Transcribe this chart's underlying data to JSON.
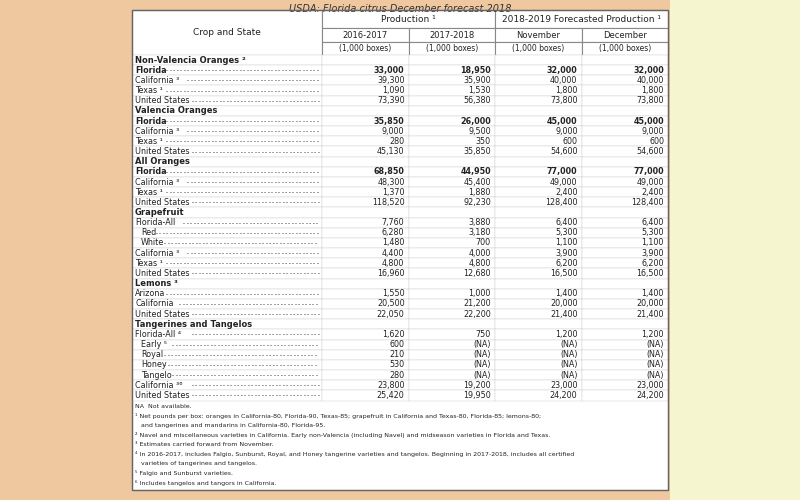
{
  "title": "USDA: Florida citrus December forecast 2018",
  "bg_left_color": "#f0c8a0",
  "bg_right_color": "#f0f0c8",
  "table_bg": "#ffffff",
  "col_subheaders": [
    "2016-2017",
    "2017-2018",
    "November",
    "December"
  ],
  "col_units": [
    "(1,000 boxes)",
    "(1,000 boxes)",
    "(1,000 boxes)",
    "(1,000 boxes)"
  ],
  "rows": [
    {
      "label": "Non-Valencia Oranges ²",
      "bold": true,
      "indent": 0,
      "values": [
        "",
        "",
        "",
        ""
      ],
      "section_header": true,
      "bold_values": false
    },
    {
      "label": "Florida",
      "bold": true,
      "indent": 1,
      "values": [
        "33,000",
        "18,950",
        "32,000",
        "32,000"
      ],
      "bold_values": true,
      "section_header": false
    },
    {
      "label": "California ³",
      "bold": false,
      "indent": 1,
      "values": [
        "39,300",
        "35,900",
        "40,000",
        "40,000"
      ],
      "bold_values": false,
      "section_header": false
    },
    {
      "label": "Texas ¹",
      "bold": false,
      "indent": 1,
      "values": [
        "1,090",
        "1,530",
        "1,800",
        "1,800"
      ],
      "bold_values": false,
      "section_header": false
    },
    {
      "label": "United States",
      "bold": false,
      "indent": 1,
      "values": [
        "73,390",
        "56,380",
        "73,800",
        "73,800"
      ],
      "bold_values": false,
      "section_header": false
    },
    {
      "label": "Valencia Oranges",
      "bold": true,
      "indent": 0,
      "values": [
        "",
        "",
        "",
        ""
      ],
      "section_header": true,
      "bold_values": false
    },
    {
      "label": "Florida",
      "bold": true,
      "indent": 1,
      "values": [
        "35,850",
        "26,000",
        "45,000",
        "45,000"
      ],
      "bold_values": true,
      "section_header": false
    },
    {
      "label": "California ³",
      "bold": false,
      "indent": 1,
      "values": [
        "9,000",
        "9,500",
        "9,000",
        "9,000"
      ],
      "bold_values": false,
      "section_header": false
    },
    {
      "label": "Texas ¹",
      "bold": false,
      "indent": 1,
      "values": [
        "280",
        "350",
        "600",
        "600"
      ],
      "bold_values": false,
      "section_header": false
    },
    {
      "label": "United States",
      "bold": false,
      "indent": 1,
      "values": [
        "45,130",
        "35,850",
        "54,600",
        "54,600"
      ],
      "bold_values": false,
      "section_header": false
    },
    {
      "label": "All Oranges",
      "bold": true,
      "indent": 0,
      "values": [
        "",
        "",
        "",
        ""
      ],
      "section_header": true,
      "bold_values": false
    },
    {
      "label": "Florida",
      "bold": true,
      "indent": 1,
      "values": [
        "68,850",
        "44,950",
        "77,000",
        "77,000"
      ],
      "bold_values": true,
      "section_header": false
    },
    {
      "label": "California ³",
      "bold": false,
      "indent": 1,
      "values": [
        "48,300",
        "45,400",
        "49,000",
        "49,000"
      ],
      "bold_values": false,
      "section_header": false
    },
    {
      "label": "Texas ¹",
      "bold": false,
      "indent": 1,
      "values": [
        "1,370",
        "1,880",
        "2,400",
        "2,400"
      ],
      "bold_values": false,
      "section_header": false
    },
    {
      "label": "United States",
      "bold": false,
      "indent": 1,
      "values": [
        "118,520",
        "92,230",
        "128,400",
        "128,400"
      ],
      "bold_values": false,
      "section_header": false
    },
    {
      "label": "Grapefruit",
      "bold": true,
      "indent": 0,
      "values": [
        "",
        "",
        "",
        ""
      ],
      "section_header": true,
      "bold_values": false
    },
    {
      "label": "Florida-All",
      "bold": false,
      "indent": 1,
      "values": [
        "7,760",
        "3,880",
        "6,400",
        "6,400"
      ],
      "bold_values": false,
      "section_header": false
    },
    {
      "label": "  Red",
      "bold": false,
      "indent": 2,
      "values": [
        "6,280",
        "3,180",
        "5,300",
        "5,300"
      ],
      "bold_values": false,
      "section_header": false
    },
    {
      "label": "  White",
      "bold": false,
      "indent": 2,
      "values": [
        "1,480",
        "700",
        "1,100",
        "1,100"
      ],
      "bold_values": false,
      "section_header": false
    },
    {
      "label": "California ³",
      "bold": false,
      "indent": 1,
      "values": [
        "4,400",
        "4,000",
        "3,900",
        "3,900"
      ],
      "bold_values": false,
      "section_header": false
    },
    {
      "label": "Texas ¹",
      "bold": false,
      "indent": 1,
      "values": [
        "4,800",
        "4,800",
        "6,200",
        "6,200"
      ],
      "bold_values": false,
      "section_header": false
    },
    {
      "label": "United States",
      "bold": false,
      "indent": 1,
      "values": [
        "16,960",
        "12,680",
        "16,500",
        "16,500"
      ],
      "bold_values": false,
      "section_header": false
    },
    {
      "label": "Lemons ³",
      "bold": true,
      "indent": 0,
      "values": [
        "",
        "",
        "",
        ""
      ],
      "section_header": true,
      "bold_values": false
    },
    {
      "label": "Arizona",
      "bold": false,
      "indent": 1,
      "values": [
        "1,550",
        "1,000",
        "1,400",
        "1,400"
      ],
      "bold_values": false,
      "section_header": false
    },
    {
      "label": "California",
      "bold": false,
      "indent": 1,
      "values": [
        "20,500",
        "21,200",
        "20,000",
        "20,000"
      ],
      "bold_values": false,
      "section_header": false
    },
    {
      "label": "United States",
      "bold": false,
      "indent": 1,
      "values": [
        "22,050",
        "22,200",
        "21,400",
        "21,400"
      ],
      "bold_values": false,
      "section_header": false
    },
    {
      "label": "Tangerines and Tangelos",
      "bold": true,
      "indent": 0,
      "values": [
        "",
        "",
        "",
        ""
      ],
      "section_header": true,
      "bold_values": false
    },
    {
      "label": "Florida-All ⁴",
      "bold": false,
      "indent": 1,
      "values": [
        "1,620",
        "750",
        "1,200",
        "1,200"
      ],
      "bold_values": false,
      "section_header": false
    },
    {
      "label": "  Early ⁵",
      "bold": false,
      "indent": 2,
      "values": [
        "600",
        "(NA)",
        "(NA)",
        "(NA)"
      ],
      "bold_values": false,
      "section_header": false
    },
    {
      "label": "  Royal",
      "bold": false,
      "indent": 2,
      "values": [
        "210",
        "(NA)",
        "(NA)",
        "(NA)"
      ],
      "bold_values": false,
      "section_header": false
    },
    {
      "label": "  Honey",
      "bold": false,
      "indent": 2,
      "values": [
        "530",
        "(NA)",
        "(NA)",
        "(NA)"
      ],
      "bold_values": false,
      "section_header": false
    },
    {
      "label": "  Tangelo",
      "bold": false,
      "indent": 2,
      "values": [
        "280",
        "(NA)",
        "(NA)",
        "(NA)"
      ],
      "bold_values": false,
      "section_header": false
    },
    {
      "label": "California ³⁶",
      "bold": false,
      "indent": 1,
      "values": [
        "23,800",
        "19,200",
        "23,000",
        "23,000"
      ],
      "bold_values": false,
      "section_header": false
    },
    {
      "label": "United States",
      "bold": false,
      "indent": 1,
      "values": [
        "25,420",
        "19,950",
        "24,200",
        "24,200"
      ],
      "bold_values": false,
      "section_header": false
    }
  ],
  "footnotes": [
    "NA  Not available.",
    "¹ Net pounds per box: oranges in California-80, Florida-90, Texas-85; grapefruit in California and Texas-80, Florida-85; lemons-80;",
    "   and tangerines and mandarins in California-80, Florida-95.",
    "² Navel and miscellaneous varieties in California. Early non-Valencia (including Navel) and midseason varieties in Florida and Texas.",
    "³ Estimates carried forward from November.",
    "⁴ In 2016-2017, includes Falgio, Sunburst, Royal, and Honey tangerine varieties and tangelos. Beginning in 2017-2018, includes all certified",
    "   varieties of tangerines and tangelos.",
    "⁵ Falgio and Sunburst varieties.",
    "⁶ Includes tangelos and tangors in California."
  ]
}
